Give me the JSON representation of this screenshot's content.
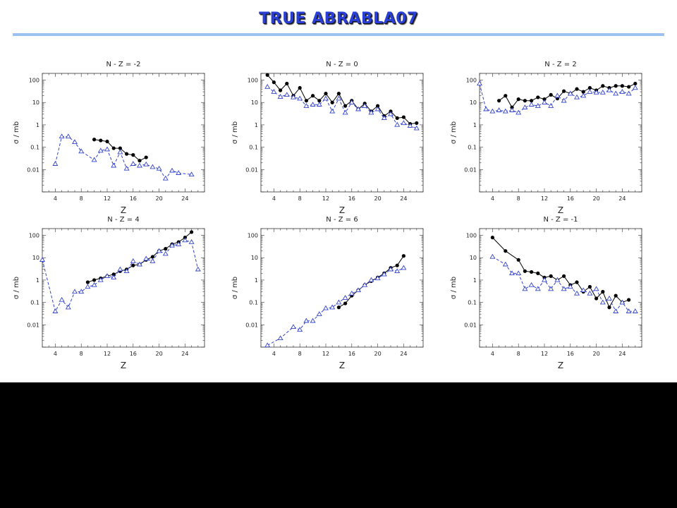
{
  "slide": {
    "title": "TRUE ABRABLA07"
  },
  "colors": {
    "title": "#2a3fd6",
    "rule": "#9cc3f0",
    "experiment": "#000000",
    "model": "#3344cc",
    "bottom_band": "#000000"
  },
  "chart_data": [
    {
      "type": "line",
      "title": "N - Z = -2",
      "xlabel": "Z",
      "ylabel": "σ / mb",
      "xlim": [
        2,
        27
      ],
      "ylim": [
        0.001,
        200
      ],
      "yscale": "log",
      "xticks": [
        4,
        8,
        12,
        16,
        20,
        24
      ],
      "yticks": [
        100,
        10,
        1,
        0.1,
        0.01
      ],
      "ytick_labels": [
        "100",
        "10",
        "1",
        "0.1",
        "0.01"
      ],
      "series": [
        {
          "style": "solid-circle",
          "color": "#000000",
          "x": [
            10,
            11,
            12,
            13,
            14,
            15,
            16,
            17,
            18
          ],
          "y": [
            0.22,
            0.2,
            0.18,
            0.09,
            0.09,
            0.05,
            0.045,
            0.025,
            0.035
          ]
        },
        {
          "style": "dashed-triangle",
          "color": "#3344cc",
          "x": [
            4,
            5,
            6,
            7,
            8,
            10,
            11,
            12,
            13,
            14,
            15,
            16,
            17,
            18,
            19,
            20,
            21,
            22,
            23,
            25
          ],
          "y": [
            0.018,
            0.3,
            0.3,
            0.17,
            0.065,
            0.027,
            0.07,
            0.08,
            0.015,
            0.06,
            0.011,
            0.018,
            0.015,
            0.017,
            0.013,
            0.011,
            0.004,
            0.009,
            0.007,
            0.006
          ]
        }
      ]
    },
    {
      "type": "line",
      "title": "N - Z = 0",
      "xlabel": "Z",
      "ylabel": "σ / mb",
      "xlim": [
        2,
        27
      ],
      "ylim": [
        0.001,
        200
      ],
      "yscale": "log",
      "xticks": [
        4,
        8,
        12,
        16,
        20,
        24
      ],
      "yticks": [
        100,
        10,
        1,
        0.1,
        0.01
      ],
      "ytick_labels": [
        "100",
        "10",
        "1",
        "0.1",
        "0.01"
      ],
      "series": [
        {
          "style": "solid-circle",
          "color": "#000000",
          "x": [
            3,
            4,
            5,
            6,
            7,
            8,
            9,
            10,
            11,
            12,
            13,
            14,
            15,
            16,
            17,
            18,
            19,
            20,
            21,
            22,
            23,
            24,
            25,
            26
          ],
          "y": [
            170,
            80,
            35,
            70,
            20,
            45,
            12,
            20,
            12,
            25,
            10,
            25,
            7,
            12,
            5,
            9,
            4,
            7,
            2.5,
            4,
            2,
            2.2,
            1.1,
            1.2
          ]
        },
        {
          "style": "dashed-triangle",
          "color": "#3344cc",
          "x": [
            3,
            4,
            5,
            6,
            7,
            8,
            9,
            10,
            11,
            12,
            13,
            14,
            15,
            16,
            17,
            18,
            19,
            20,
            21,
            22,
            23,
            24,
            25,
            26
          ],
          "y": [
            50,
            30,
            18,
            22,
            17,
            15,
            7,
            8,
            8,
            15,
            4,
            15,
            3.5,
            10,
            5,
            7,
            3.5,
            5,
            2,
            3,
            1,
            1.2,
            0.9,
            0.7
          ]
        }
      ]
    },
    {
      "type": "line",
      "title": "N - Z = 2",
      "xlabel": "Z",
      "ylabel": "σ / mb",
      "xlim": [
        2,
        27
      ],
      "ylim": [
        0.001,
        200
      ],
      "yscale": "log",
      "xticks": [
        4,
        8,
        12,
        16,
        20,
        24
      ],
      "yticks": [
        100,
        10,
        1,
        0.1,
        0.01
      ],
      "ytick_labels": [
        "100",
        "10",
        "1",
        "0.1",
        "0.01"
      ],
      "series": [
        {
          "style": "solid-circle",
          "color": "#000000",
          "x": [
            5,
            6,
            7,
            8,
            9,
            10,
            11,
            12,
            13,
            14,
            15,
            16,
            17,
            18,
            19,
            20,
            21,
            22,
            23,
            24,
            25,
            26
          ],
          "y": [
            12,
            20,
            6,
            14,
            12,
            12,
            17,
            14,
            22,
            15,
            32,
            25,
            40,
            30,
            45,
            35,
            55,
            45,
            55,
            55,
            50,
            70
          ]
        },
        {
          "style": "dashed-triangle",
          "color": "#3344cc",
          "x": [
            2,
            3,
            4,
            5,
            6,
            7,
            8,
            9,
            10,
            11,
            12,
            13,
            14,
            15,
            16,
            17,
            18,
            19,
            20,
            21,
            22,
            23,
            24,
            25,
            26
          ],
          "y": [
            70,
            5,
            4,
            4.5,
            4,
            4.5,
            3.5,
            6,
            8,
            7,
            10,
            7,
            20,
            12,
            25,
            17,
            20,
            30,
            28,
            28,
            35,
            25,
            30,
            25,
            45
          ]
        }
      ]
    },
    {
      "type": "line",
      "title": "N - Z = 4",
      "xlabel": "Z",
      "ylabel": "σ / mb",
      "xlim": [
        2,
        27
      ],
      "ylim": [
        0.001,
        200
      ],
      "yscale": "log",
      "xticks": [
        4,
        8,
        12,
        16,
        20,
        24
      ],
      "yticks": [
        100,
        10,
        1,
        0.1,
        0.01
      ],
      "ytick_labels": [
        "100",
        "10",
        "1",
        "0.1",
        "0.01"
      ],
      "series": [
        {
          "style": "solid-circle",
          "color": "#000000",
          "x": [
            9,
            10,
            11,
            12,
            13,
            14,
            15,
            16,
            17,
            18,
            19,
            20,
            21,
            22,
            23,
            24,
            25
          ],
          "y": [
            0.8,
            1,
            1.2,
            1.5,
            1.8,
            2.5,
            3,
            4.5,
            5,
            8,
            11,
            20,
            25,
            40,
            50,
            80,
            140
          ]
        },
        {
          "style": "dashed-triangle",
          "color": "#3344cc",
          "x": [
            2,
            4,
            5,
            6,
            7,
            8,
            9,
            10,
            11,
            12,
            13,
            14,
            15,
            16,
            17,
            18,
            19,
            20,
            21,
            22,
            23,
            24,
            25,
            26
          ],
          "y": [
            8,
            0.04,
            0.13,
            0.06,
            0.3,
            0.3,
            0.5,
            0.6,
            1,
            1.5,
            1.3,
            3,
            2.5,
            7,
            5,
            9,
            7,
            20,
            15,
            35,
            40,
            60,
            50,
            3
          ]
        }
      ]
    },
    {
      "type": "line",
      "title": "N - Z = 6",
      "xlabel": "Z",
      "ylabel": "σ / mb",
      "xlim": [
        2,
        27
      ],
      "ylim": [
        0.001,
        200
      ],
      "yscale": "log",
      "xticks": [
        4,
        8,
        12,
        16,
        20,
        24
      ],
      "yticks": [
        100,
        10,
        1,
        0.1,
        0.01
      ],
      "ytick_labels": [
        "100",
        "10",
        "1",
        "0.1",
        "0.01"
      ],
      "series": [
        {
          "style": "solid-circle",
          "color": "#000000",
          "x": [
            14,
            15,
            16,
            17,
            18,
            19,
            20,
            21,
            22,
            23,
            24
          ],
          "y": [
            0.06,
            0.09,
            0.2,
            0.35,
            0.6,
            0.9,
            1.3,
            2,
            3.5,
            4.5,
            12
          ]
        },
        {
          "style": "dashed-triangle",
          "color": "#3344cc",
          "x": [
            3,
            5,
            7,
            8,
            9,
            10,
            11,
            12,
            13,
            14,
            15,
            16,
            17,
            18,
            19,
            20,
            21,
            22,
            23,
            24
          ],
          "y": [
            0.0012,
            0.0025,
            0.008,
            0.006,
            0.015,
            0.015,
            0.03,
            0.055,
            0.06,
            0.1,
            0.16,
            0.25,
            0.35,
            0.6,
            1,
            1.2,
            1.8,
            3,
            2.5,
            3.5
          ]
        }
      ]
    },
    {
      "type": "line",
      "title": "N - Z = -1",
      "xlabel": "Z",
      "ylabel": "σ / mb",
      "xlim": [
        2,
        27
      ],
      "ylim": [
        0.001,
        200
      ],
      "yscale": "log",
      "xticks": [
        4,
        8,
        12,
        16,
        20,
        24
      ],
      "yticks": [
        100,
        10,
        1,
        0.1,
        0.01
      ],
      "ytick_labels": [
        "100",
        "10",
        "1",
        "0.1",
        "0.01"
      ],
      "series": [
        {
          "style": "solid-circle",
          "color": "#000000",
          "x": [
            4,
            6,
            8,
            9,
            10,
            11,
            12,
            13,
            14,
            15,
            16,
            17,
            18,
            19,
            20,
            21,
            22,
            23,
            24,
            25
          ],
          "y": [
            80,
            20,
            8,
            2.5,
            2.3,
            2,
            1.3,
            1.5,
            1,
            1.5,
            0.6,
            0.8,
            0.3,
            0.5,
            0.15,
            0.3,
            0.06,
            0.2,
            0.1,
            0.13
          ]
        },
        {
          "style": "dashed-triangle",
          "color": "#3344cc",
          "x": [
            4,
            6,
            7,
            8,
            9,
            10,
            11,
            12,
            13,
            14,
            15,
            16,
            17,
            18,
            19,
            20,
            21,
            22,
            23,
            24,
            25,
            26
          ],
          "y": [
            11,
            5,
            2,
            2,
            0.4,
            0.6,
            0.4,
            1,
            0.4,
            1,
            0.4,
            0.5,
            0.25,
            0.35,
            0.25,
            0.4,
            0.1,
            0.15,
            0.04,
            0.1,
            0.04,
            0.04
          ]
        }
      ]
    }
  ]
}
